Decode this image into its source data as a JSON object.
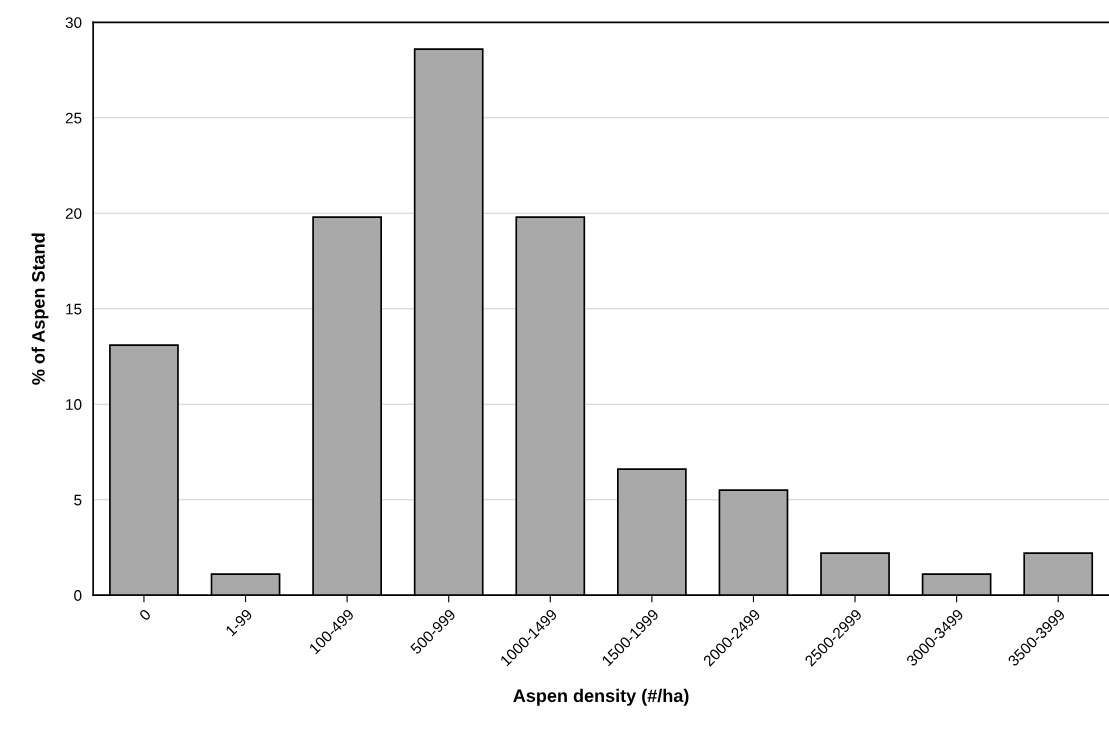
{
  "chart_data": {
    "type": "bar",
    "xlabel": "Aspen density (#/ha)",
    "ylabel": "% of Aspen Stand",
    "categories": [
      "0",
      "1-99",
      "100-499",
      "500-999",
      "1000-1499",
      "1500-1999",
      "2000-2499",
      "2500-2999",
      "3000-3499",
      "3500-3999"
    ],
    "values": [
      13.1,
      1.1,
      19.8,
      28.6,
      19.8,
      6.6,
      5.5,
      2.2,
      1.1,
      2.2
    ],
    "color": "#a9a9a9",
    "ylim": [
      0,
      30
    ],
    "yticks": [
      0,
      5,
      10,
      15,
      20,
      25,
      30
    ],
    "grid": "y",
    "legend": false
  }
}
